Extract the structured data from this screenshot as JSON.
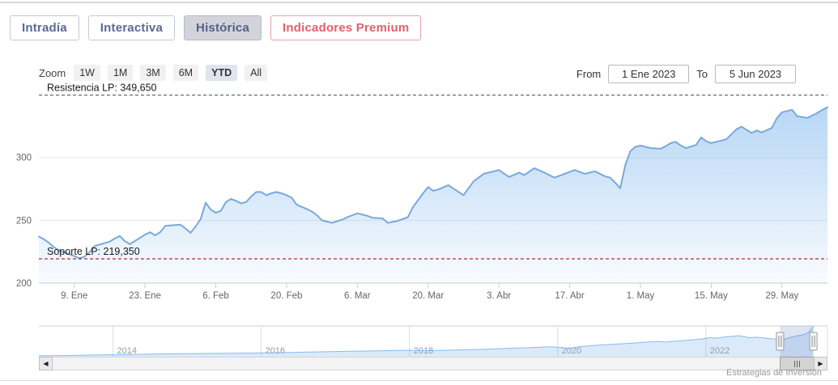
{
  "tabs": [
    {
      "label": "Intradía",
      "active": false,
      "premium": false
    },
    {
      "label": "Interactiva",
      "active": false,
      "premium": false
    },
    {
      "label": "Histórica",
      "active": true,
      "premium": false
    },
    {
      "label": "Indicadores Premium",
      "active": false,
      "premium": true
    }
  ],
  "toolbar": {
    "zoom_label": "Zoom",
    "zoom_buttons": [
      "1W",
      "1M",
      "3M",
      "6M",
      "YTD",
      "All"
    ],
    "zoom_selected": "YTD",
    "from_label": "From",
    "from_value": "1 Ene 2023",
    "to_label": "To",
    "to_value": "5 Jun 2023"
  },
  "watermark": "Estrategias de Inversión",
  "chart_data": {
    "type": "area",
    "title": "",
    "xlabel": "",
    "ylabel": "",
    "grid": true,
    "ylim": [
      200,
      361
    ],
    "yticks": [
      200,
      250,
      300
    ],
    "x_domain_days": [
      2,
      158
    ],
    "xticks": [
      {
        "d": 9,
        "label": "9. Ene"
      },
      {
        "d": 23,
        "label": "23. Ene"
      },
      {
        "d": 37,
        "label": "6. Feb"
      },
      {
        "d": 51,
        "label": "20. Feb"
      },
      {
        "d": 65,
        "label": "6. Mar"
      },
      {
        "d": 79,
        "label": "20. Mar"
      },
      {
        "d": 93,
        "label": "3. Abr"
      },
      {
        "d": 107,
        "label": "17. Abr"
      },
      {
        "d": 121,
        "label": "1. May"
      },
      {
        "d": 135,
        "label": "15. May"
      },
      {
        "d": 149,
        "label": "29. May"
      }
    ],
    "resistance": {
      "label": "Resistencia LP: 349,650",
      "value": 349.65,
      "color": "#2e5c33"
    },
    "support": {
      "label": "Soporte LP: 219,350",
      "value": 219.35,
      "color": "#990000"
    },
    "line_color": "#79a9dc",
    "fill_top": "rgba(124,181,236,0.55)",
    "fill_bottom": "rgba(124,181,236,0.05)",
    "points": [
      [
        2,
        237
      ],
      [
        3,
        235
      ],
      [
        4,
        232
      ],
      [
        5,
        228.5
      ],
      [
        6,
        226
      ],
      [
        9,
        221.5
      ],
      [
        10,
        219.8
      ],
      [
        11,
        221
      ],
      [
        12,
        224.5
      ],
      [
        13,
        229.5
      ],
      [
        16,
        233
      ],
      [
        17,
        235.5
      ],
      [
        18,
        237.5
      ],
      [
        19,
        233.5
      ],
      [
        20,
        231
      ],
      [
        23,
        238.5
      ],
      [
        24,
        240.5
      ],
      [
        25,
        238
      ],
      [
        26,
        240.5
      ],
      [
        27,
        245.5
      ],
      [
        30,
        246.5
      ],
      [
        31,
        243.5
      ],
      [
        32,
        240
      ],
      [
        33,
        245
      ],
      [
        34,
        251
      ],
      [
        35,
        264
      ],
      [
        36,
        258.5
      ],
      [
        37,
        256
      ],
      [
        38,
        257.5
      ],
      [
        39,
        264.5
      ],
      [
        40,
        267
      ],
      [
        41,
        265.5
      ],
      [
        42,
        263.5
      ],
      [
        43,
        264.5
      ],
      [
        44,
        269
      ],
      [
        45,
        272.5
      ],
      [
        46,
        272.5
      ],
      [
        47,
        270
      ],
      [
        48,
        271.5
      ],
      [
        49,
        272.5
      ],
      [
        50,
        271.5
      ],
      [
        51,
        270
      ],
      [
        52,
        268
      ],
      [
        53,
        262.5
      ],
      [
        55,
        259
      ],
      [
        56,
        257
      ],
      [
        57,
        254
      ],
      [
        58,
        250
      ],
      [
        60,
        248
      ],
      [
        62,
        250.5
      ],
      [
        63,
        252.5
      ],
      [
        65,
        255.5
      ],
      [
        67,
        253.5
      ],
      [
        68,
        252
      ],
      [
        70,
        251.5
      ],
      [
        71,
        248
      ],
      [
        73,
        249.5
      ],
      [
        75,
        252.5
      ],
      [
        76,
        260.5
      ],
      [
        78,
        271.5
      ],
      [
        79,
        276.5
      ],
      [
        80,
        273.5
      ],
      [
        81,
        274.5
      ],
      [
        83,
        278
      ],
      [
        86,
        270
      ],
      [
        88,
        281
      ],
      [
        90,
        287
      ],
      [
        93,
        290
      ],
      [
        95,
        284.5
      ],
      [
        97,
        288
      ],
      [
        98,
        286
      ],
      [
        100,
        291.5
      ],
      [
        102,
        288
      ],
      [
        104,
        284
      ],
      [
        106,
        287
      ],
      [
        108,
        290
      ],
      [
        110,
        287
      ],
      [
        112,
        289
      ],
      [
        114,
        285
      ],
      [
        115,
        284
      ],
      [
        116,
        280
      ],
      [
        117,
        275.5
      ],
      [
        118,
        294
      ],
      [
        119,
        305
      ],
      [
        120,
        308.5
      ],
      [
        121,
        309.5
      ],
      [
        122,
        308.5
      ],
      [
        123,
        307.5
      ],
      [
        125,
        307
      ],
      [
        126,
        309
      ],
      [
        127,
        311.5
      ],
      [
        128,
        312.5
      ],
      [
        129,
        309.5
      ],
      [
        130,
        307.5
      ],
      [
        132,
        310
      ],
      [
        133,
        316
      ],
      [
        134,
        313
      ],
      [
        135,
        311.5
      ],
      [
        137,
        313.5
      ],
      [
        138,
        314.5
      ],
      [
        140,
        322.5
      ],
      [
        141,
        324.5
      ],
      [
        143,
        319.5
      ],
      [
        144,
        321.5
      ],
      [
        145,
        320
      ],
      [
        147,
        323.5
      ],
      [
        148,
        331.5
      ],
      [
        149,
        336
      ],
      [
        151,
        338
      ],
      [
        152,
        333
      ],
      [
        154,
        331.5
      ],
      [
        156,
        335.5
      ],
      [
        157,
        338
      ],
      [
        158,
        340
      ]
    ],
    "navigator": {
      "x_domain": [
        2013.0,
        2023.64
      ],
      "ylim": [
        80,
        360
      ],
      "year_ticks": [
        {
          "y": 2014,
          "label": "2014"
        },
        {
          "y": 2016,
          "label": "2016"
        },
        {
          "y": 2018,
          "label": "2018"
        },
        {
          "y": 2020,
          "label": "2020"
        },
        {
          "y": 2022,
          "label": "2022"
        }
      ],
      "selection": [
        2023.0,
        2023.45
      ],
      "points": [
        [
          2013.0,
          88
        ],
        [
          2013.3,
          90
        ],
        [
          2013.6,
          93
        ],
        [
          2014.0,
          97
        ],
        [
          2014.4,
          101
        ],
        [
          2014.8,
          105
        ],
        [
          2015.2,
          108
        ],
        [
          2015.6,
          110
        ],
        [
          2016.0,
          112
        ],
        [
          2016.4,
          117
        ],
        [
          2016.8,
          122
        ],
        [
          2017.2,
          127
        ],
        [
          2017.6,
          131
        ],
        [
          2018.0,
          136
        ],
        [
          2018.2,
          132
        ],
        [
          2018.5,
          136
        ],
        [
          2018.8,
          140
        ],
        [
          2019.0,
          144
        ],
        [
          2019.3,
          152
        ],
        [
          2019.6,
          158
        ],
        [
          2019.9,
          166
        ],
        [
          2020.05,
          160
        ],
        [
          2020.15,
          152
        ],
        [
          2020.3,
          167
        ],
        [
          2020.45,
          175
        ],
        [
          2020.55,
          180
        ],
        [
          2020.65,
          184
        ],
        [
          2020.75,
          188
        ],
        [
          2020.85,
          191
        ],
        [
          2020.95,
          195
        ],
        [
          2021.05,
          199
        ],
        [
          2021.15,
          204
        ],
        [
          2021.25,
          209
        ],
        [
          2021.35,
          212
        ],
        [
          2021.45,
          207
        ],
        [
          2021.55,
          212
        ],
        [
          2021.65,
          217
        ],
        [
          2021.75,
          223
        ],
        [
          2021.85,
          228
        ],
        [
          2021.95,
          234
        ],
        [
          2022.05,
          245
        ],
        [
          2022.12,
          240
        ],
        [
          2022.2,
          246
        ],
        [
          2022.28,
          252
        ],
        [
          2022.36,
          257
        ],
        [
          2022.44,
          262
        ],
        [
          2022.52,
          253
        ],
        [
          2022.6,
          244
        ],
        [
          2022.68,
          249
        ],
        [
          2022.76,
          244
        ],
        [
          2022.84,
          238
        ],
        [
          2022.92,
          233
        ],
        [
          2023.0,
          237
        ],
        [
          2023.04,
          225
        ],
        [
          2023.1,
          241
        ],
        [
          2023.17,
          252
        ],
        [
          2023.25,
          263
        ],
        [
          2023.32,
          272
        ],
        [
          2023.38,
          288
        ],
        [
          2023.42,
          320
        ],
        [
          2023.45,
          342
        ]
      ]
    }
  }
}
